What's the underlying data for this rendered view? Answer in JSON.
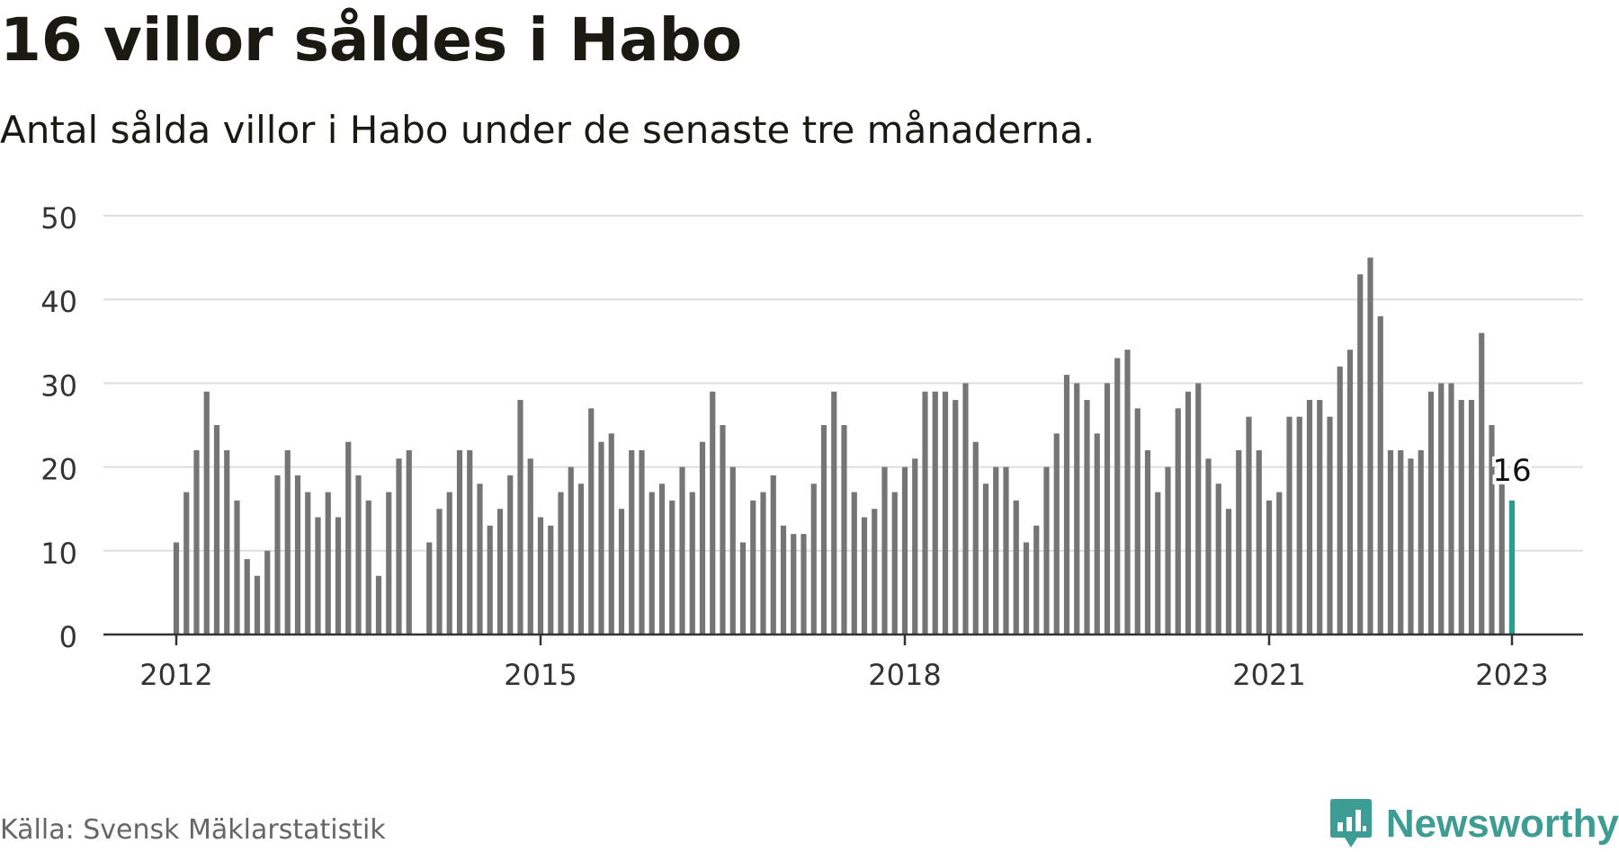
{
  "header": {
    "title": "16 villor såldes i Habo",
    "subtitle": "Antal sålda villor i Habo under de senaste tre månaderna."
  },
  "footer": {
    "source": "Källa: Svensk Mäklarstatistik",
    "brand": "Newsworthy"
  },
  "colors": {
    "bar": "#757575",
    "highlight": "#2a9d8f",
    "grid": "#dddddd",
    "axis": "#333333",
    "brand": "#3d9c93"
  },
  "chart_data": {
    "type": "bar",
    "x_start": "2012-01",
    "x_interval": "month",
    "values": [
      11,
      17,
      22,
      29,
      25,
      22,
      16,
      9,
      7,
      10,
      19,
      22,
      19,
      17,
      14,
      17,
      14,
      23,
      19,
      16,
      7,
      17,
      21,
      22,
      null,
      11,
      15,
      17,
      22,
      22,
      18,
      13,
      15,
      19,
      28,
      21,
      14,
      13,
      17,
      20,
      18,
      27,
      23,
      24,
      15,
      22,
      22,
      17,
      18,
      16,
      20,
      17,
      23,
      29,
      25,
      20,
      11,
      16,
      17,
      19,
      13,
      12,
      12,
      18,
      25,
      29,
      25,
      17,
      14,
      15,
      20,
      17,
      20,
      21,
      29,
      29,
      29,
      28,
      30,
      23,
      18,
      20,
      20,
      16,
      11,
      13,
      20,
      24,
      31,
      30,
      28,
      24,
      30,
      33,
      34,
      27,
      22,
      17,
      20,
      27,
      29,
      30,
      21,
      18,
      15,
      22,
      26,
      22,
      16,
      17,
      26,
      26,
      28,
      28,
      26,
      32,
      34,
      43,
      45,
      38,
      22,
      22,
      21,
      22,
      29,
      30,
      30,
      28,
      28,
      36,
      25,
      18,
      16
    ],
    "ylim": [
      0,
      50
    ],
    "yticks": [
      0,
      10,
      20,
      30,
      40,
      50
    ],
    "xticks": [
      "2012",
      "2015",
      "2018",
      "2021",
      "2023"
    ],
    "highlight": {
      "label": "16",
      "value": 16
    },
    "grid": true
  }
}
